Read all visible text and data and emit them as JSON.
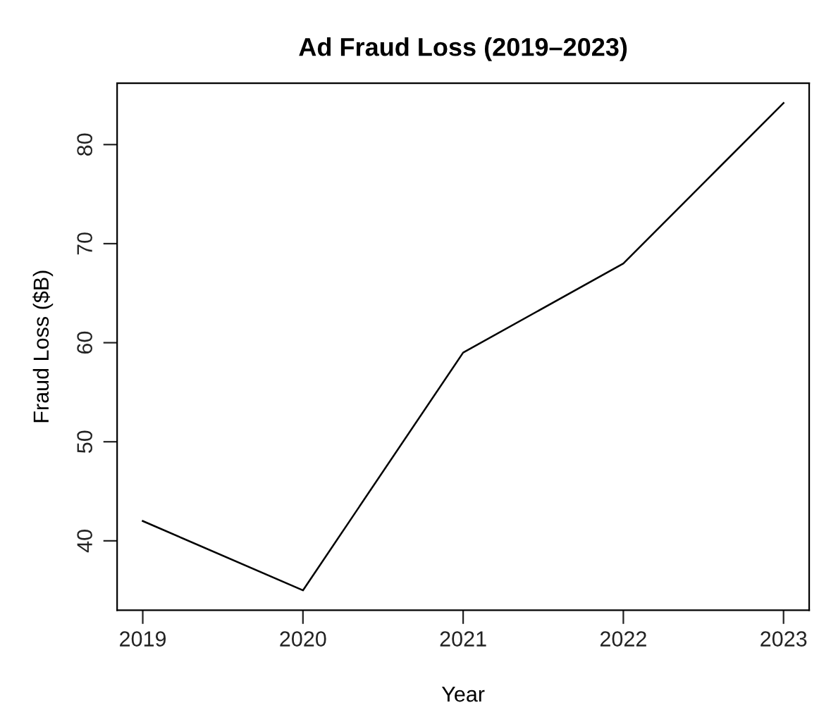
{
  "chart_data": {
    "type": "line",
    "title": "Ad Fraud Loss (2019–2023)",
    "xlabel": "Year",
    "ylabel": "Fraud Loss ($B)",
    "x": [
      2019,
      2020,
      2021,
      2022,
      2023
    ],
    "series": [
      {
        "color": "#000000",
        "values": [
          42,
          35,
          59,
          68,
          84.2
        ]
      }
    ],
    "xlim": [
      2018.84,
      2023.16
    ],
    "xticks": [
      2019,
      2020,
      2021,
      2022,
      2023
    ],
    "ylim": [
      33.0,
      86.2
    ],
    "yticks": [
      40,
      50,
      60,
      70,
      80
    ],
    "grid": false,
    "legend": false,
    "marker": "none",
    "line_style": "solid"
  }
}
